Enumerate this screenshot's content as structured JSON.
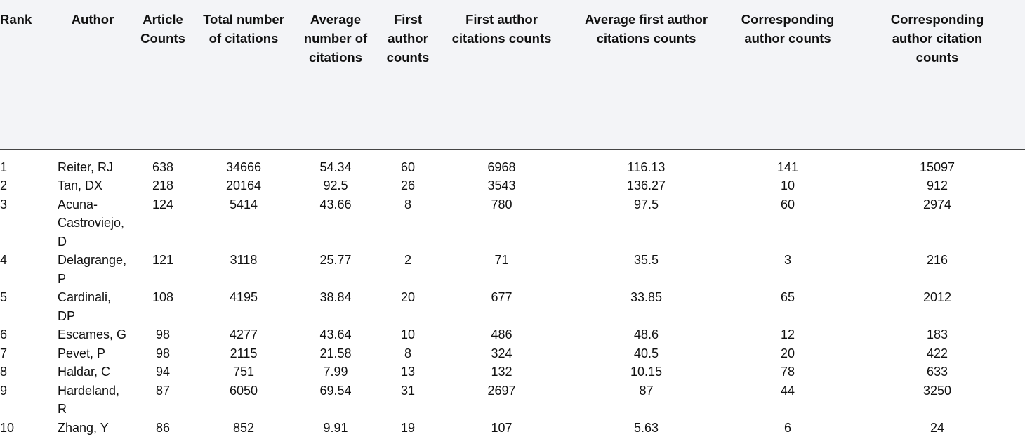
{
  "headers": [
    "Rank",
    "Author",
    "Article\nCounts",
    "Total number\nof citations",
    "Average\nnumber of\ncitations",
    "First\nauthor\ncounts",
    "First author\ncitations counts",
    "Average first author\ncitations counts",
    "Corresponding\nauthor counts",
    "Corresponding\nauthor citation\ncounts"
  ],
  "rows": [
    [
      "1",
      "Reiter, RJ",
      "638",
      "34666",
      "54.34",
      "60",
      "6968",
      "116.13",
      "141",
      "15097"
    ],
    [
      "2",
      "Tan, DX",
      "218",
      "20164",
      "92.5",
      "26",
      "3543",
      "136.27",
      "10",
      "912"
    ],
    [
      "3",
      "Acuna-\nCastroviejo,\nD",
      "124",
      "5414",
      "43.66",
      "8",
      "780",
      "97.5",
      "60",
      "2974"
    ],
    [
      "4",
      "Delagrange,\nP",
      "121",
      "3118",
      "25.77",
      "2",
      "71",
      "35.5",
      "3",
      "216"
    ],
    [
      "5",
      "Cardinali,\nDP",
      "108",
      "4195",
      "38.84",
      "20",
      "677",
      "33.85",
      "65",
      "2012"
    ],
    [
      "6",
      "Escames, G",
      "98",
      "4277",
      "43.64",
      "10",
      "486",
      "48.6",
      "12",
      "183"
    ],
    [
      "7",
      "Pevet, P",
      "98",
      "2115",
      "21.58",
      "8",
      "324",
      "40.5",
      "20",
      "422"
    ],
    [
      "8",
      "Haldar, C",
      "94",
      "751",
      "7.99",
      "13",
      "132",
      "10.15",
      "78",
      "633"
    ],
    [
      "9",
      "Hardeland,\nR",
      "87",
      "6050",
      "69.54",
      "31",
      "2697",
      "87",
      "44",
      "3250"
    ],
    [
      "10",
      "Zhang, Y",
      "86",
      "852",
      "9.91",
      "19",
      "107",
      "5.63",
      "6",
      "24"
    ]
  ]
}
